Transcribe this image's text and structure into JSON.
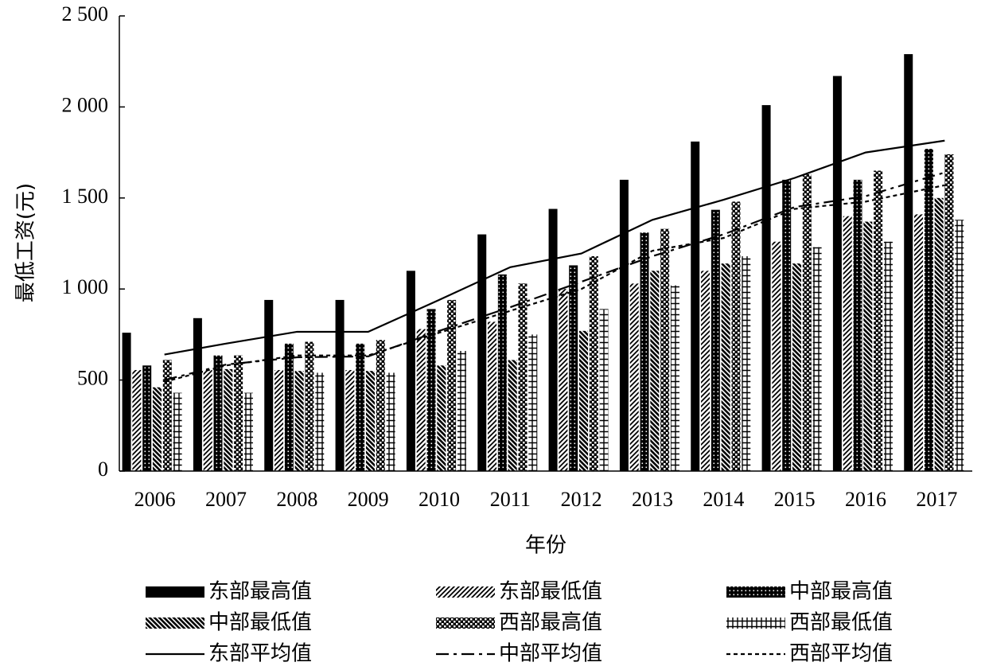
{
  "chart_data": {
    "type": "bar",
    "xlabel": "年份",
    "ylabel": "最低工资(元)",
    "ylim": [
      0,
      2500
    ],
    "yticks": [
      {
        "value": 0,
        "label": "0"
      },
      {
        "value": 500,
        "label": "500"
      },
      {
        "value": 1000,
        "label": "1 000"
      },
      {
        "value": 1500,
        "label": "1 500"
      },
      {
        "value": 2000,
        "label": "2 000"
      },
      {
        "value": 2500,
        "label": "2 500"
      }
    ],
    "categories": [
      "2006",
      "2007",
      "2008",
      "2009",
      "2010",
      "2011",
      "2012",
      "2013",
      "2014",
      "2015",
      "2016",
      "2017"
    ],
    "series": [
      {
        "name": "东部最高值",
        "kind": "bar",
        "pattern": "solid",
        "values": [
          760,
          840,
          940,
          940,
          1100,
          1300,
          1440,
          1600,
          1810,
          2010,
          2170,
          2290
        ]
      },
      {
        "name": "东部最低值",
        "kind": "bar",
        "pattern": "hatch-fwd",
        "values": [
          555,
          555,
          555,
          555,
          780,
          820,
          1000,
          1030,
          1100,
          1260,
          1400,
          1410
        ]
      },
      {
        "name": "中部最高值",
        "kind": "bar",
        "pattern": "dots-dark",
        "values": [
          580,
          635,
          700,
          700,
          890,
          1080,
          1130,
          1310,
          1435,
          1600,
          1600,
          1770
        ]
      },
      {
        "name": "中部最低值",
        "kind": "bar",
        "pattern": "hatch-back",
        "values": [
          460,
          560,
          550,
          550,
          580,
          610,
          770,
          1100,
          1140,
          1140,
          1370,
          1500
        ]
      },
      {
        "name": "西部最高值",
        "kind": "bar",
        "pattern": "checker",
        "values": [
          610,
          635,
          710,
          720,
          940,
          1030,
          1180,
          1330,
          1480,
          1630,
          1650,
          1740
        ]
      },
      {
        "name": "西部最低值",
        "kind": "bar",
        "pattern": "grid",
        "values": [
          430,
          430,
          540,
          540,
          660,
          750,
          890,
          1020,
          1180,
          1230,
          1260,
          1380
        ]
      },
      {
        "name": "东部平均值",
        "kind": "line",
        "dash": "solid",
        "values": [
          640,
          700,
          765,
          765,
          940,
          1120,
          1195,
          1380,
          1490,
          1610,
          1750,
          1815
        ]
      },
      {
        "name": "中部平均值",
        "kind": "line",
        "dash": "dashdot",
        "values": [
          500,
          585,
          625,
          630,
          770,
          900,
          1040,
          1180,
          1300,
          1450,
          1510,
          1640
        ]
      },
      {
        "name": "西部平均值",
        "kind": "line",
        "dash": "dotted",
        "values": [
          490,
          580,
          635,
          635,
          760,
          880,
          1000,
          1210,
          1280,
          1440,
          1480,
          1570
        ]
      }
    ],
    "grid": false,
    "legend": "bottom"
  }
}
